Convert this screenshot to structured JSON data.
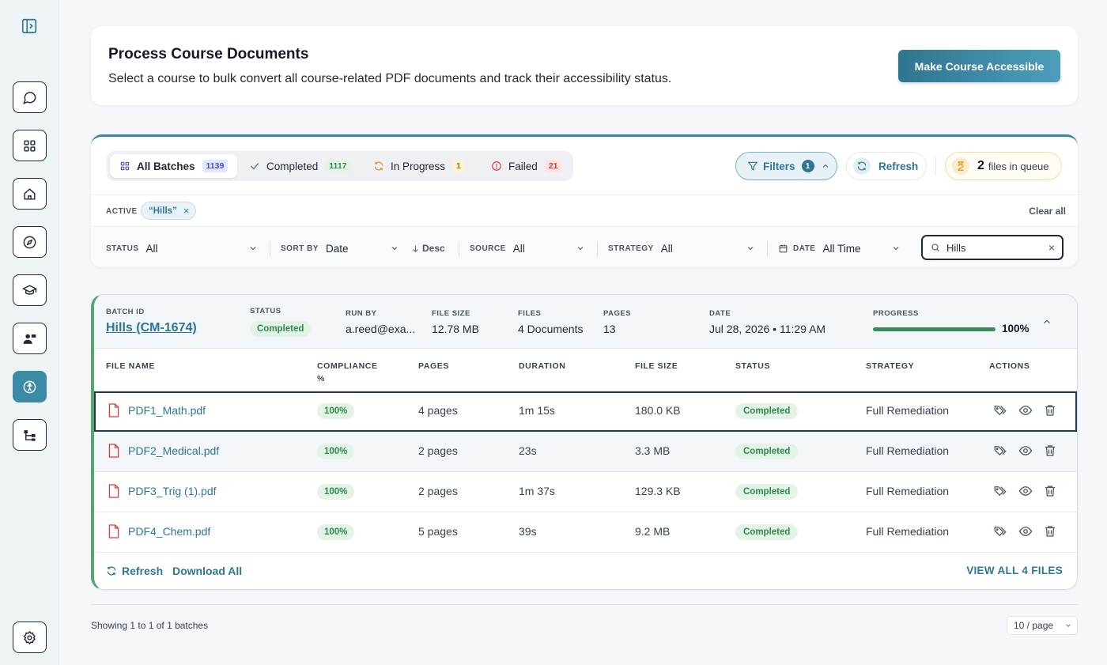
{
  "header": {
    "title": "Process Course Documents",
    "subtitle": "Select a course to bulk convert all course-related PDF documents and track their accessibility status.",
    "primary_button": "Make Course Accessible"
  },
  "tabs": [
    {
      "label": "All Batches",
      "count": "1139",
      "icon": "grid-icon"
    },
    {
      "label": "Completed",
      "count": "1117",
      "icon": "check-icon"
    },
    {
      "label": "In Progress",
      "count": "1",
      "icon": "sync-icon"
    },
    {
      "label": "Failed",
      "count": "21",
      "icon": "alert-circle-icon"
    }
  ],
  "toolbar": {
    "filters_label": "Filters",
    "filters_count": "1",
    "refresh_label": "Refresh",
    "queue_count": "2",
    "queue_text": "files in queue"
  },
  "active_filters": {
    "label": "ACTIVE",
    "chip": "“Hills”",
    "clear_all": "Clear all"
  },
  "filters": {
    "status_label": "STATUS",
    "status_value": "All",
    "sort_label": "SORT BY",
    "sort_value": "Date",
    "sort_dir": "Desc",
    "source_label": "SOURCE",
    "source_value": "All",
    "strategy_label": "STRATEGY",
    "strategy_value": "All",
    "date_label": "DATE",
    "date_value": "All Time",
    "search_value": "Hills"
  },
  "batch": {
    "labels": {
      "batch_id": "BATCH ID",
      "status": "STATUS",
      "run_by": "RUN BY",
      "file_size": "FILE SIZE",
      "files": "FILES",
      "pages": "PAGES",
      "date": "DATE",
      "progress": "PROGRESS"
    },
    "batch_id": "Hills (CM-1674)",
    "status": "Completed",
    "run_by": "a.reed@exa...",
    "file_size": "12.78 MB",
    "files": "4 Documents",
    "pages": "13",
    "date": "Jul 28, 2026 • 11:29 AM",
    "progress": "100%",
    "progress_fraction": 1.0
  },
  "table": {
    "headers": {
      "file_name": "FILE NAME",
      "compliance": "COMPLIANCE",
      "compliance_unit": "%",
      "pages": "PAGES",
      "duration": "DURATION",
      "file_size": "FILE SIZE",
      "status": "STATUS",
      "strategy": "STRATEGY",
      "actions": "ACTIONS"
    },
    "rows": [
      {
        "name": "PDF1_Math.pdf",
        "compliance": "100%",
        "pages": "4 pages",
        "duration": "1m 15s",
        "size": "180.0 KB",
        "status": "Completed",
        "strategy": "Full Remediation"
      },
      {
        "name": "PDF2_Medical.pdf",
        "compliance": "100%",
        "pages": "2 pages",
        "duration": "23s",
        "size": "3.3 MB",
        "status": "Completed",
        "strategy": "Full Remediation"
      },
      {
        "name": "PDF3_Trig (1).pdf",
        "compliance": "100%",
        "pages": "2 pages",
        "duration": "1m 37s",
        "size": "129.3 KB",
        "status": "Completed",
        "strategy": "Full Remediation"
      },
      {
        "name": "PDF4_Chem.pdf",
        "compliance": "100%",
        "pages": "5 pages",
        "duration": "39s",
        "size": "9.2 MB",
        "status": "Completed",
        "strategy": "Full Remediation"
      }
    ]
  },
  "card_footer": {
    "refresh": "Refresh",
    "download_all": "Download All",
    "view_all": "VIEW ALL 4 FILES"
  },
  "pagination": {
    "showing": "Showing 1 to 1 of 1 batches",
    "per_page": "10 / page"
  },
  "colors": {
    "accent": "#2d7793",
    "success": "#2f8a4a",
    "danger": "#d43d3d",
    "warning": "#a57a0f"
  }
}
